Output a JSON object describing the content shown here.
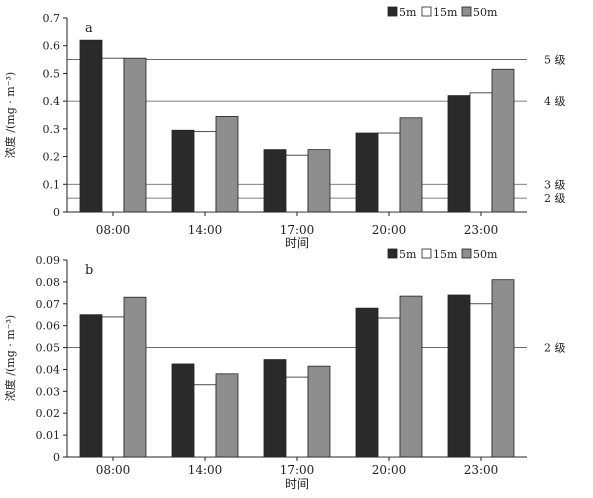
{
  "chart_data": [
    {
      "type": "bar",
      "panel_label": "a",
      "categories": [
        "08:00",
        "14:00",
        "17:00",
        "20:00",
        "23:00"
      ],
      "series": [
        {
          "name": "5m",
          "color": "#2a2a2a",
          "values": [
            0.62,
            0.295,
            0.225,
            0.285,
            0.42
          ]
        },
        {
          "name": "15m",
          "color": "#ffffff",
          "values": [
            0.555,
            0.29,
            0.205,
            0.285,
            0.43
          ]
        },
        {
          "name": "50m",
          "color": "#8e8e8e",
          "values": [
            0.555,
            0.345,
            0.225,
            0.34,
            0.515
          ]
        }
      ],
      "xlabel": "时间",
      "ylabel": "浓度 /(mg · m⁻³)",
      "ylim": [
        0,
        0.7
      ],
      "yticks": [
        "0",
        "0.1",
        "0.2",
        "0.3",
        "0.4",
        "0.5",
        "0.6",
        "0.7"
      ],
      "reference_lines": [
        {
          "value": 0.55,
          "label": "5 级"
        },
        {
          "value": 0.4,
          "label": "4 级"
        },
        {
          "value": 0.1,
          "label": "3 级"
        },
        {
          "value": 0.05,
          "label": "2 级"
        }
      ],
      "legend_position": "top-right",
      "grid": false
    },
    {
      "type": "bar",
      "panel_label": "b",
      "categories": [
        "08:00",
        "14:00",
        "17:00",
        "20:00",
        "23:00"
      ],
      "series": [
        {
          "name": "5m",
          "color": "#2a2a2a",
          "values": [
            0.065,
            0.0425,
            0.0445,
            0.068,
            0.074
          ]
        },
        {
          "name": "15m",
          "color": "#ffffff",
          "values": [
            0.064,
            0.033,
            0.0365,
            0.0635,
            0.07
          ]
        },
        {
          "name": "50m",
          "color": "#8e8e8e",
          "values": [
            0.073,
            0.038,
            0.0415,
            0.0735,
            0.081
          ]
        }
      ],
      "xlabel": "时间",
      "ylabel": "浓度 /(mg · m⁻³)",
      "ylim": [
        0,
        0.09
      ],
      "yticks": [
        "0",
        "0.01",
        "0.02",
        "0.03",
        "0.04",
        "0.05",
        "0.06",
        "0.07",
        "0.08",
        "0.09"
      ],
      "reference_lines": [
        {
          "value": 0.05,
          "label": "2 级"
        }
      ],
      "legend_position": "top-right",
      "grid": false
    }
  ]
}
